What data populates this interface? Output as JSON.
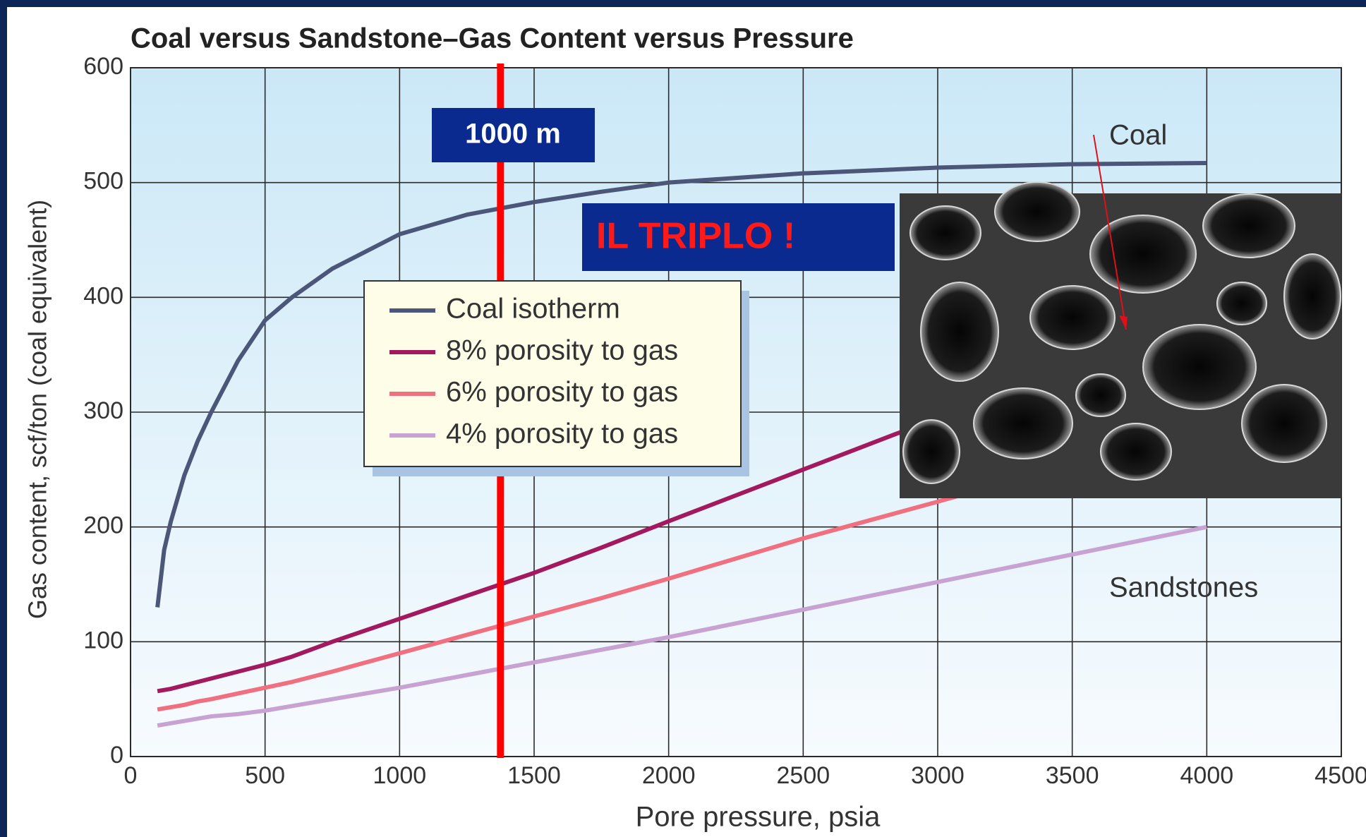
{
  "chart_data": {
    "type": "line",
    "title": "Coal versus Sandstone–Gas Content versus Pressure",
    "x_label": "Pore pressure, psia",
    "y_label": "Gas content, scf/ton (coal equivalent)",
    "x": [
      100,
      125,
      150,
      200,
      250,
      300,
      400,
      500,
      600,
      750,
      1000,
      1250,
      1500,
      1750,
      2000,
      2500,
      3000,
      3500,
      4000
    ],
    "series": [
      {
        "name": "Coal isotherm",
        "color": "#4b5679",
        "values": [
          130,
          180,
          205,
          245,
          275,
          300,
          345,
          380,
          400,
          425,
          455,
          472,
          483,
          492,
          500,
          508,
          513,
          516,
          517
        ]
      },
      {
        "name": "8% porosity to gas",
        "color": "#a3195f",
        "values": [
          57,
          58,
          59,
          62,
          65,
          68,
          74,
          80,
          87,
          100,
          120,
          140,
          160,
          182,
          205,
          250,
          295,
          340,
          385
        ]
      },
      {
        "name": "6% porosity to gas",
        "color": "#f0707f",
        "values": [
          41,
          42,
          43,
          45,
          48,
          50,
          55,
          60,
          65,
          74,
          90,
          106,
          122,
          138,
          155,
          190,
          222,
          255,
          290
        ]
      },
      {
        "name": "4% porosity to gas",
        "color": "#c9a2d4",
        "values": [
          27,
          28,
          29,
          31,
          33,
          35,
          37,
          40,
          44,
          50,
          60,
          71,
          82,
          93,
          104,
          128,
          152,
          176,
          200
        ]
      }
    ],
    "xlim": [
      0,
      4500
    ],
    "xticks": [
      0,
      500,
      1000,
      1500,
      2000,
      2500,
      3000,
      3500,
      4000,
      4500
    ],
    "ylim": [
      0,
      600
    ],
    "yticks": [
      0,
      100,
      200,
      300,
      400,
      500,
      600
    ],
    "grid": true,
    "marker_line": {
      "x": 1375,
      "label": "1000 m",
      "color": "#ff0000"
    },
    "annotations": {
      "coal": "Coal",
      "sandstones": "Sandstones",
      "callout": "IL TRIPLO !"
    }
  }
}
